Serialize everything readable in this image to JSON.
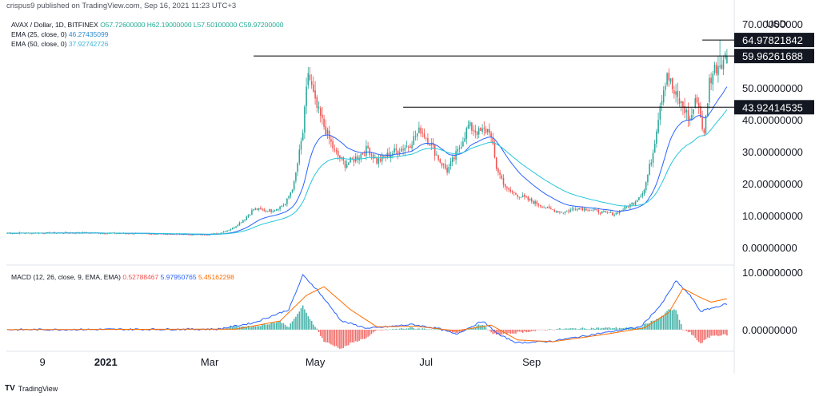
{
  "publisher_line": "crispus9 published on TradingView.com, Sep 16, 2021 11:23 UTC+3",
  "footer": {
    "logo": "TV",
    "label": "TradingView"
  },
  "legend": {
    "symbol": "AVAX / Dollar, 1D, BITFINEX",
    "ohlc": "O57.72600000  H62.19000000  L57.50100000  C59.97200000",
    "ema25_label": "EMA (25, close, 0)",
    "ema25_value": "46.27435099",
    "ema50_label": "EMA (50, close, 0)",
    "ema50_value": "37.92742726",
    "macd_label": "MACD (12, 26, close, 9, EMA, EMA)",
    "macd_hist": "0.52788467",
    "macd_line": "5.97950765",
    "macd_signal": "5.45162298"
  },
  "chart_data": {
    "type": "candlestick",
    "currency": "USD",
    "price_axis": {
      "ticks": [
        0,
        10,
        20,
        30,
        40,
        50,
        60,
        70
      ],
      "labels": [
        "0.00000000",
        "10.00000000",
        "20.00000000",
        "30.00000000",
        "40.00000000",
        "50.00000000",
        "",
        "70.00000000"
      ],
      "ylim": [
        -5,
        72
      ]
    },
    "macd_axis": {
      "ticks": [
        0,
        10
      ],
      "labels": [
        "0.00000000",
        "10.00000000"
      ],
      "ylim": [
        -3.5,
        11
      ]
    },
    "x_labels": [
      "9",
      "2021",
      "Mar",
      "May",
      "Jul",
      "Sep"
    ],
    "horizontal_lines": [
      {
        "value": 64.97821842,
        "label": "64.97821842"
      },
      {
        "value": 59.96261688,
        "label": "59.96261688"
      },
      {
        "value": 43.92414535,
        "label": "43.92414535"
      }
    ],
    "price_keypoints": [
      [
        0,
        4.5
      ],
      [
        40,
        4.6
      ],
      [
        80,
        4.3
      ],
      [
        110,
        4.0
      ],
      [
        120,
        4.4
      ],
      [
        128,
        6.0
      ],
      [
        135,
        9.0
      ],
      [
        140,
        12.0
      ],
      [
        150,
        11.5
      ],
      [
        158,
        13.5
      ],
      [
        163,
        20.0
      ],
      [
        168,
        36.0
      ],
      [
        171,
        55.0
      ],
      [
        175,
        45.0
      ],
      [
        180,
        38.0
      ],
      [
        186,
        30.0
      ],
      [
        192,
        26.0
      ],
      [
        198,
        28.0
      ],
      [
        205,
        31.0
      ],
      [
        210,
        27.0
      ],
      [
        220,
        30.0
      ],
      [
        228,
        32.0
      ],
      [
        235,
        37.0
      ],
      [
        240,
        33.0
      ],
      [
        246,
        27.0
      ],
      [
        250,
        24.0
      ],
      [
        256,
        30.0
      ],
      [
        262,
        38.0
      ],
      [
        268,
        36.0
      ],
      [
        274,
        37.0
      ],
      [
        278,
        25.0
      ],
      [
        284,
        18.0
      ],
      [
        292,
        16.0
      ],
      [
        300,
        14.0
      ],
      [
        308,
        12.0
      ],
      [
        316,
        11.0
      ],
      [
        324,
        12.5
      ],
      [
        330,
        12.0
      ],
      [
        338,
        11.0
      ],
      [
        345,
        10.5
      ],
      [
        350,
        12.0
      ],
      [
        356,
        14.0
      ],
      [
        362,
        18.0
      ],
      [
        367,
        30.0
      ],
      [
        371,
        45.0
      ],
      [
        375,
        55.0
      ],
      [
        379,
        48.0
      ],
      [
        384,
        44.0
      ],
      [
        388,
        40.0
      ],
      [
        392,
        47.0
      ],
      [
        396,
        35.0
      ],
      [
        399,
        52.0
      ],
      [
        402,
        56.0
      ],
      [
        405,
        58.0
      ],
      [
        409,
        60.0
      ]
    ],
    "macd_keypoints": [
      [
        0,
        0
      ],
      [
        120,
        0.1
      ],
      [
        140,
        1.2
      ],
      [
        160,
        3.5
      ],
      [
        168,
        9.5
      ],
      [
        176,
        7.0
      ],
      [
        190,
        1.5
      ],
      [
        205,
        0.2
      ],
      [
        230,
        0.9
      ],
      [
        245,
        0.2
      ],
      [
        255,
        -0.8
      ],
      [
        270,
        1.5
      ],
      [
        280,
        -1.0
      ],
      [
        290,
        -2.3
      ],
      [
        310,
        -2.0
      ],
      [
        340,
        -0.5
      ],
      [
        360,
        0.5
      ],
      [
        372,
        4.5
      ],
      [
        380,
        8.5
      ],
      [
        388,
        6.0
      ],
      [
        394,
        3.2
      ],
      [
        409,
        4.5
      ]
    ],
    "signal_keypoints": [
      [
        0,
        0
      ],
      [
        130,
        0.1
      ],
      [
        155,
        1.5
      ],
      [
        170,
        6.0
      ],
      [
        180,
        7.5
      ],
      [
        195,
        3.5
      ],
      [
        210,
        0.5
      ],
      [
        232,
        0.6
      ],
      [
        255,
        -0.2
      ],
      [
        275,
        0.8
      ],
      [
        290,
        -1.8
      ],
      [
        310,
        -2.1
      ],
      [
        340,
        -0.8
      ],
      [
        362,
        0.3
      ],
      [
        376,
        3.0
      ],
      [
        384,
        7.2
      ],
      [
        394,
        5.6
      ],
      [
        400,
        4.8
      ],
      [
        409,
        5.4
      ]
    ],
    "colors": {
      "up": "#26a69a",
      "down": "#ef5350",
      "ema25": "#2962ff",
      "ema50": "#26c6da",
      "macd": "#2962ff",
      "signal": "#ff6d00",
      "hist_up": "#26a69a",
      "hist_down": "#ef5350"
    }
  }
}
